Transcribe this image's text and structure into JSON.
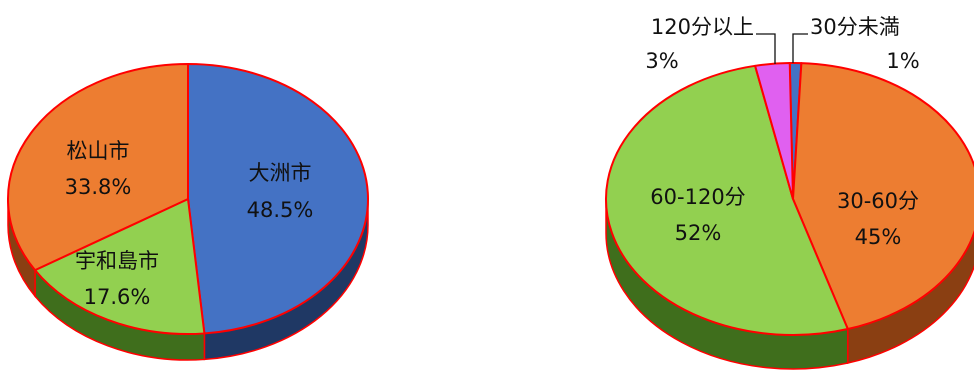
{
  "chart_data": [
    {
      "type": "pie",
      "title": "",
      "labels": [
        "大洲市",
        "宇和島市",
        "松山市"
      ],
      "values": [
        48.5,
        17.6,
        33.8
      ],
      "value_labels": [
        "48.5%",
        "17.6%",
        "33.8%"
      ],
      "colors": [
        "#4472C4",
        "#92D050",
        "#ED7D31"
      ],
      "side_colors": [
        "#1F3864",
        "#3F6E1C",
        "#8A3F12"
      ],
      "highlight_outline": "#FF0000",
      "three_d": true
    },
    {
      "type": "pie",
      "title": "",
      "labels": [
        "30分未満",
        "30-60分",
        "60-120分",
        "120分以上"
      ],
      "values": [
        1,
        45,
        52,
        3
      ],
      "value_labels": [
        "1%",
        "45%",
        "52%",
        "3%"
      ],
      "colors": [
        "#4472C4",
        "#ED7D31",
        "#92D050",
        "#E060F0"
      ],
      "side_colors": [
        "#1F3864",
        "#8A3F12",
        "#3F6E1C",
        "#7A2A8A"
      ],
      "highlight_outline": "#FF0000",
      "three_d": true
    }
  ]
}
